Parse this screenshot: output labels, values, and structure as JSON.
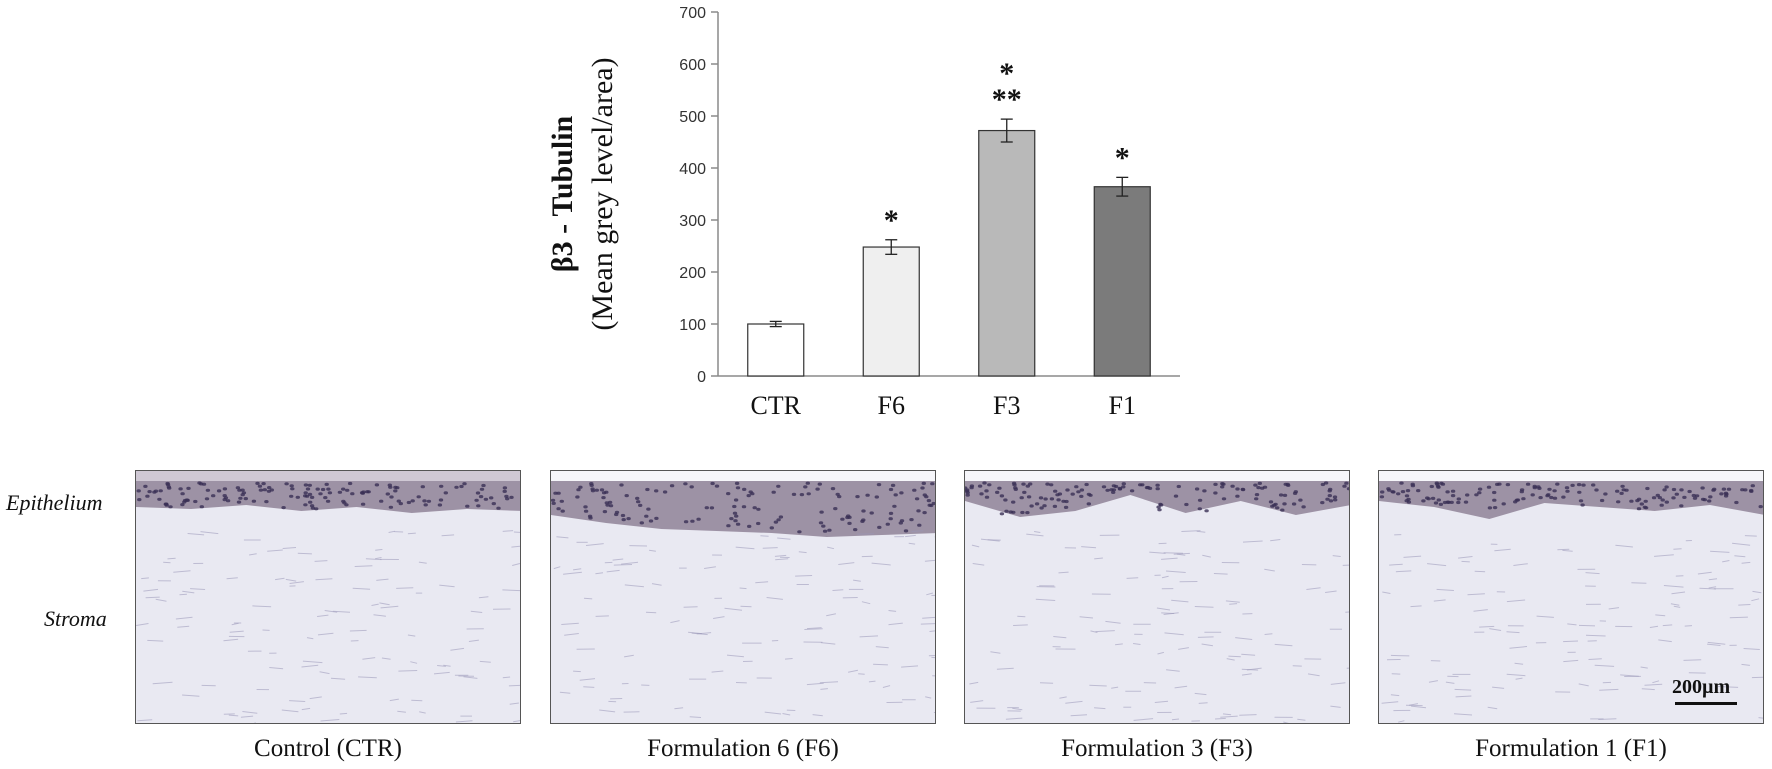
{
  "chart_data": {
    "type": "bar",
    "categories": [
      "CTR",
      "F6",
      "F3",
      "F1"
    ],
    "values": [
      100,
      248,
      472,
      364
    ],
    "errors": [
      5,
      14,
      22,
      18
    ],
    "significance": [
      "",
      "*",
      "*\n**",
      "*"
    ],
    "bar_colors": [
      "#ffffff",
      "#efefef",
      "#b9b9b9",
      "#7b7b7b"
    ],
    "ylabel_line1": "β3 - Tubulin",
    "ylabel_line2": "(Mean grey level/area)",
    "ylim": [
      0,
      700
    ],
    "yticks": [
      0,
      100,
      200,
      300,
      400,
      500,
      600,
      700
    ],
    "grid": false
  },
  "histology": {
    "row_labels": {
      "epithelium": "Epithelium",
      "stroma": "Stroma"
    },
    "panels": [
      {
        "caption": "Control (CTR)"
      },
      {
        "caption": "Formulation 6 (F6)"
      },
      {
        "caption": "Formulation 3 (F3)"
      },
      {
        "caption": "Formulation 1 (F1)"
      }
    ],
    "scale_bar": "200µm",
    "colors": {
      "epithelium": "#5e4a66",
      "stroma": "#e9e9f2",
      "nuclei": "#3a2f55"
    }
  }
}
